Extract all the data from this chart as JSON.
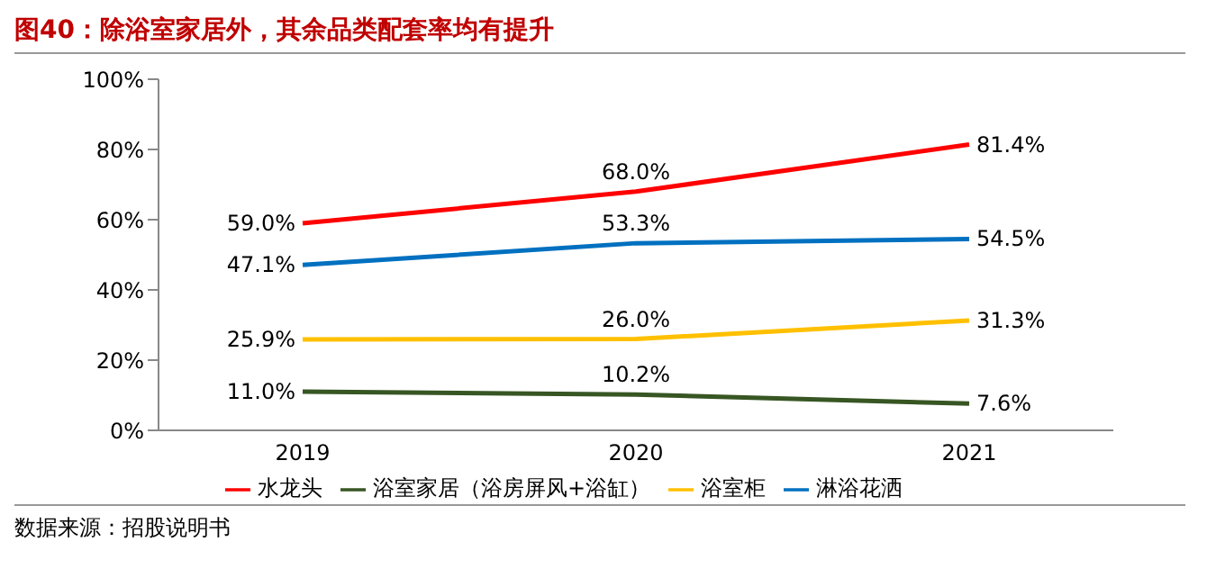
{
  "chart_data": {
    "type": "line",
    "title": "图40：除浴室家居外，其余品类配套率均有提升",
    "categories": [
      "2019",
      "2020",
      "2021"
    ],
    "series": [
      {
        "name": "淋浴花洒",
        "color": "#0070c0",
        "values": [
          47.1,
          53.3,
          54.5
        ],
        "value_labels": [
          "47.1%",
          "53.3%",
          "54.5%"
        ]
      },
      {
        "name": "水龙头",
        "color": "#ff0000",
        "values": [
          59.0,
          68.0,
          81.4
        ],
        "value_labels": [
          "59.0%",
          "68.0%",
          "81.4%"
        ]
      },
      {
        "name": "浴室家居（浴房屏风+浴缸）",
        "color": "#375623",
        "values": [
          11.0,
          10.2,
          7.6
        ],
        "value_labels": [
          "11.0%",
          "10.2%",
          "7.6%"
        ]
      },
      {
        "name": "浴室柜",
        "color": "#ffc000",
        "values": [
          25.9,
          26.0,
          31.3
        ],
        "value_labels": [
          "25.9%",
          "26.0%",
          "31.3%"
        ]
      }
    ],
    "ylim": [
      0,
      100
    ],
    "yticks": [
      {
        "value": 0,
        "label": "0%"
      },
      {
        "value": 20,
        "label": "20%"
      },
      {
        "value": 40,
        "label": "40%"
      },
      {
        "value": 60,
        "label": "60%"
      },
      {
        "value": 80,
        "label": "80%"
      },
      {
        "value": 100,
        "label": "100%"
      }
    ],
    "grid": false,
    "legend": "bottom",
    "marker": "none",
    "line_style": "solid",
    "annotations": [
      "数据来源：招股说明书"
    ]
  }
}
